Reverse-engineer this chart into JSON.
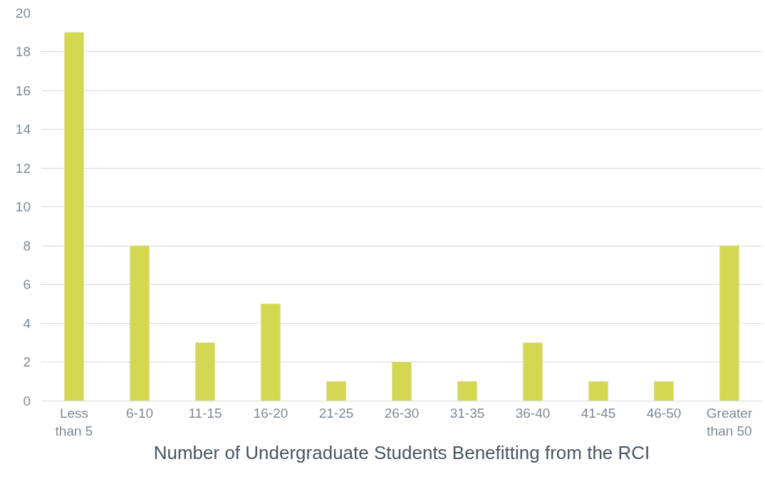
{
  "chart_data": {
    "type": "bar",
    "xlabel": "Number of Undergraduate Students Benefitting from the RCI",
    "categories": [
      "Less than 5",
      "6-10",
      "11-15",
      "16-20",
      "21-25",
      "26-30",
      "31-35",
      "36-40",
      "41-45",
      "46-50",
      "Greater than 50"
    ],
    "values": [
      19,
      8,
      3,
      5,
      1,
      2,
      1,
      3,
      1,
      1,
      8
    ],
    "color": "#d4d752",
    "ylim": [
      0,
      20
    ],
    "yticks": [
      0,
      2,
      4,
      6,
      8,
      10,
      12,
      14,
      16,
      18,
      20
    ],
    "grid": "y"
  }
}
